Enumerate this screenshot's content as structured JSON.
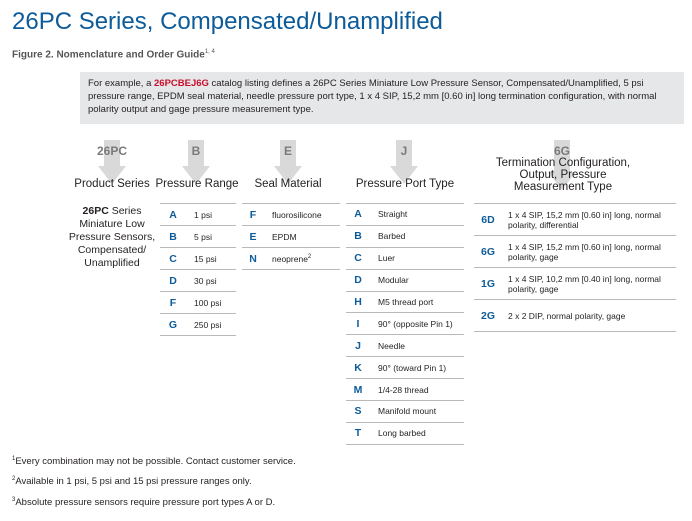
{
  "title": "26PC Series, Compensated/Unamplified",
  "figure": {
    "text": "Figure 2. Nomenclature and Order Guide",
    "sup": "1, 4"
  },
  "example": {
    "before": "For example, a ",
    "code": "26PCBEJ6G",
    "after": " catalog listing defines a 26PC Series Miniature Low Pressure Sensor, Compensated/Unamplified, 5 psi pressure range, EPDM seal material, needle pressure port type, 1 x 4 SIP, 15,2 mm [0.60 in] long termination configuration, with normal polarity output and gage pressure measurement type."
  },
  "columns": [
    {
      "code": "26PC",
      "heading": "Product Series"
    },
    {
      "code": "B",
      "heading": "Pressure Range"
    },
    {
      "code": "E",
      "heading": "Seal Material"
    },
    {
      "code": "J",
      "heading": "Pressure Port Type"
    },
    {
      "code": "6G",
      "heading": "Termination Configuration, Output, Pressure Measurement Type"
    }
  ],
  "product": {
    "bold": "26PC",
    "rest": " Series Miniature Low Pressure Sensors, Compensated/ Unamplified"
  },
  "pressure_range": [
    {
      "code": "A",
      "value": "1 psi"
    },
    {
      "code": "B",
      "value": "5 psi"
    },
    {
      "code": "C",
      "value": "15 psi"
    },
    {
      "code": "D",
      "value": "30 psi"
    },
    {
      "code": "F",
      "value": "100 psi"
    },
    {
      "code": "G",
      "value": "250 psi"
    }
  ],
  "seal_material": [
    {
      "code": "F",
      "value": "fluorosilicone"
    },
    {
      "code": "E",
      "value": "EPDM"
    },
    {
      "code": "N",
      "value": "neoprene",
      "sup": "2"
    }
  ],
  "port_type": [
    {
      "code": "A",
      "value": "Straight"
    },
    {
      "code": "B",
      "value": "Barbed"
    },
    {
      "code": "C",
      "value": "Luer"
    },
    {
      "code": "D",
      "value": "Modular"
    },
    {
      "code": "H",
      "value": "M5 thread port"
    },
    {
      "code": "I",
      "value": "90° (opposite Pin 1)"
    },
    {
      "code": "J",
      "value": "Needle"
    },
    {
      "code": "K",
      "value": "90° (toward Pin 1)"
    },
    {
      "code": "M",
      "value": "1/4-28 thread"
    },
    {
      "code": "S",
      "value": "Manifold mount"
    },
    {
      "code": "T",
      "value": "Long barbed"
    }
  ],
  "termination": [
    {
      "code": "6D",
      "value": "1 x 4 SIP, 15,2 mm [0.60 in] long, normal polarity, differential"
    },
    {
      "code": "6G",
      "value": "1 x 4 SIP, 15,2 mm [0.60 in] long, normal polarity, gage"
    },
    {
      "code": "1G",
      "value": "1 x 4 SIP, 10,2 mm [0.40 in] long, normal polarity, gage"
    },
    {
      "code": "2G",
      "value": "2 x 2 DIP, normal polarity, gage"
    }
  ],
  "footnotes": [
    {
      "sup": "1",
      "text": "Every combination may not be possible. Contact customer service."
    },
    {
      "sup": "2",
      "text": "Available in 1 psi, 5 psi and 15 psi pressure ranges only."
    },
    {
      "sup": "3",
      "text": "Absolute pressure sensors require pressure port types A or D."
    }
  ],
  "colors": {
    "brand_blue": "#0d5b99",
    "code_red": "#c8102e",
    "arrow_gray": "#d9d9d9"
  }
}
